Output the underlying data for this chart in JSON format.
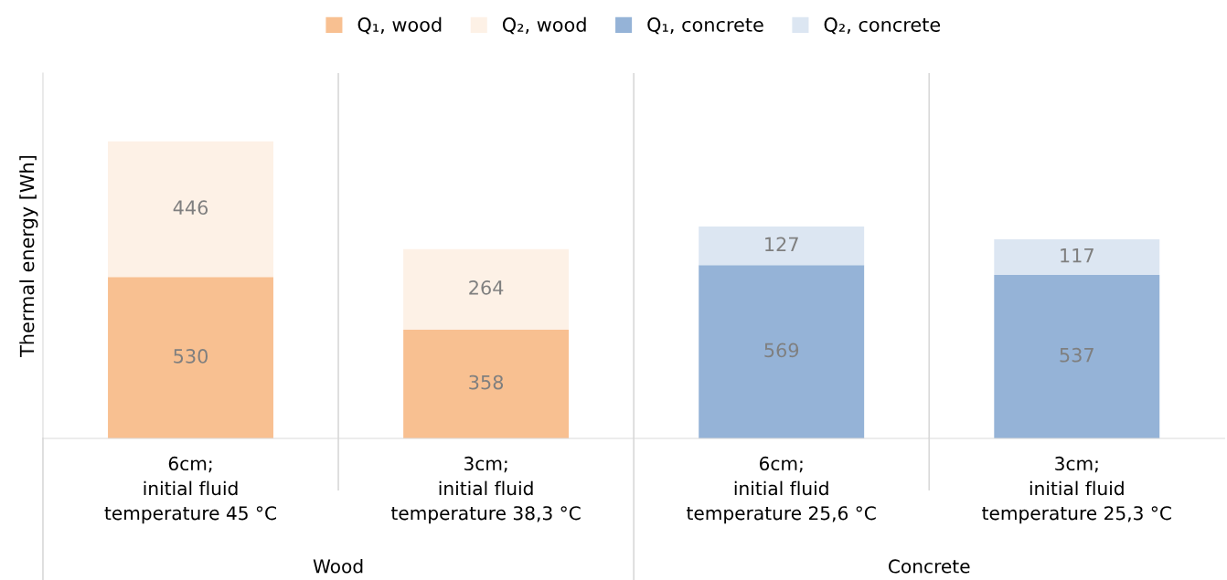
{
  "chart_data": {
    "type": "bar",
    "stacked": true,
    "ylabel": "Thermal energy [Wh]",
    "categories": [
      "6cm;\ninitial fluid\ntemperature 45 °C",
      "3cm;\ninitial fluid\ntemperature 38,3 °C",
      "6cm;\ninitial fluid\ntemperature 25,6 °C",
      "3cm;\ninitial fluid\ntemperature 25,3 °C"
    ],
    "series": [
      {
        "name": "Q₁, wood",
        "color": "#f8c091",
        "values": [
          530,
          358,
          null,
          null
        ]
      },
      {
        "name": "Q₂, wood",
        "color": "#fdf1e6",
        "values": [
          446,
          264,
          null,
          null
        ]
      },
      {
        "name": "Q₁, concrete",
        "color": "#95b3d7",
        "values": [
          null,
          null,
          569,
          537
        ]
      },
      {
        "name": "Q₂, concrete",
        "color": "#dce6f2",
        "values": [
          null,
          null,
          127,
          117
        ]
      }
    ],
    "annotations": [
      "Wood",
      "Concrete"
    ],
    "ylim": [
      0,
      1200
    ],
    "tick_labels": "x",
    "data_labels": true,
    "legend": "top",
    "grid": "x"
  }
}
